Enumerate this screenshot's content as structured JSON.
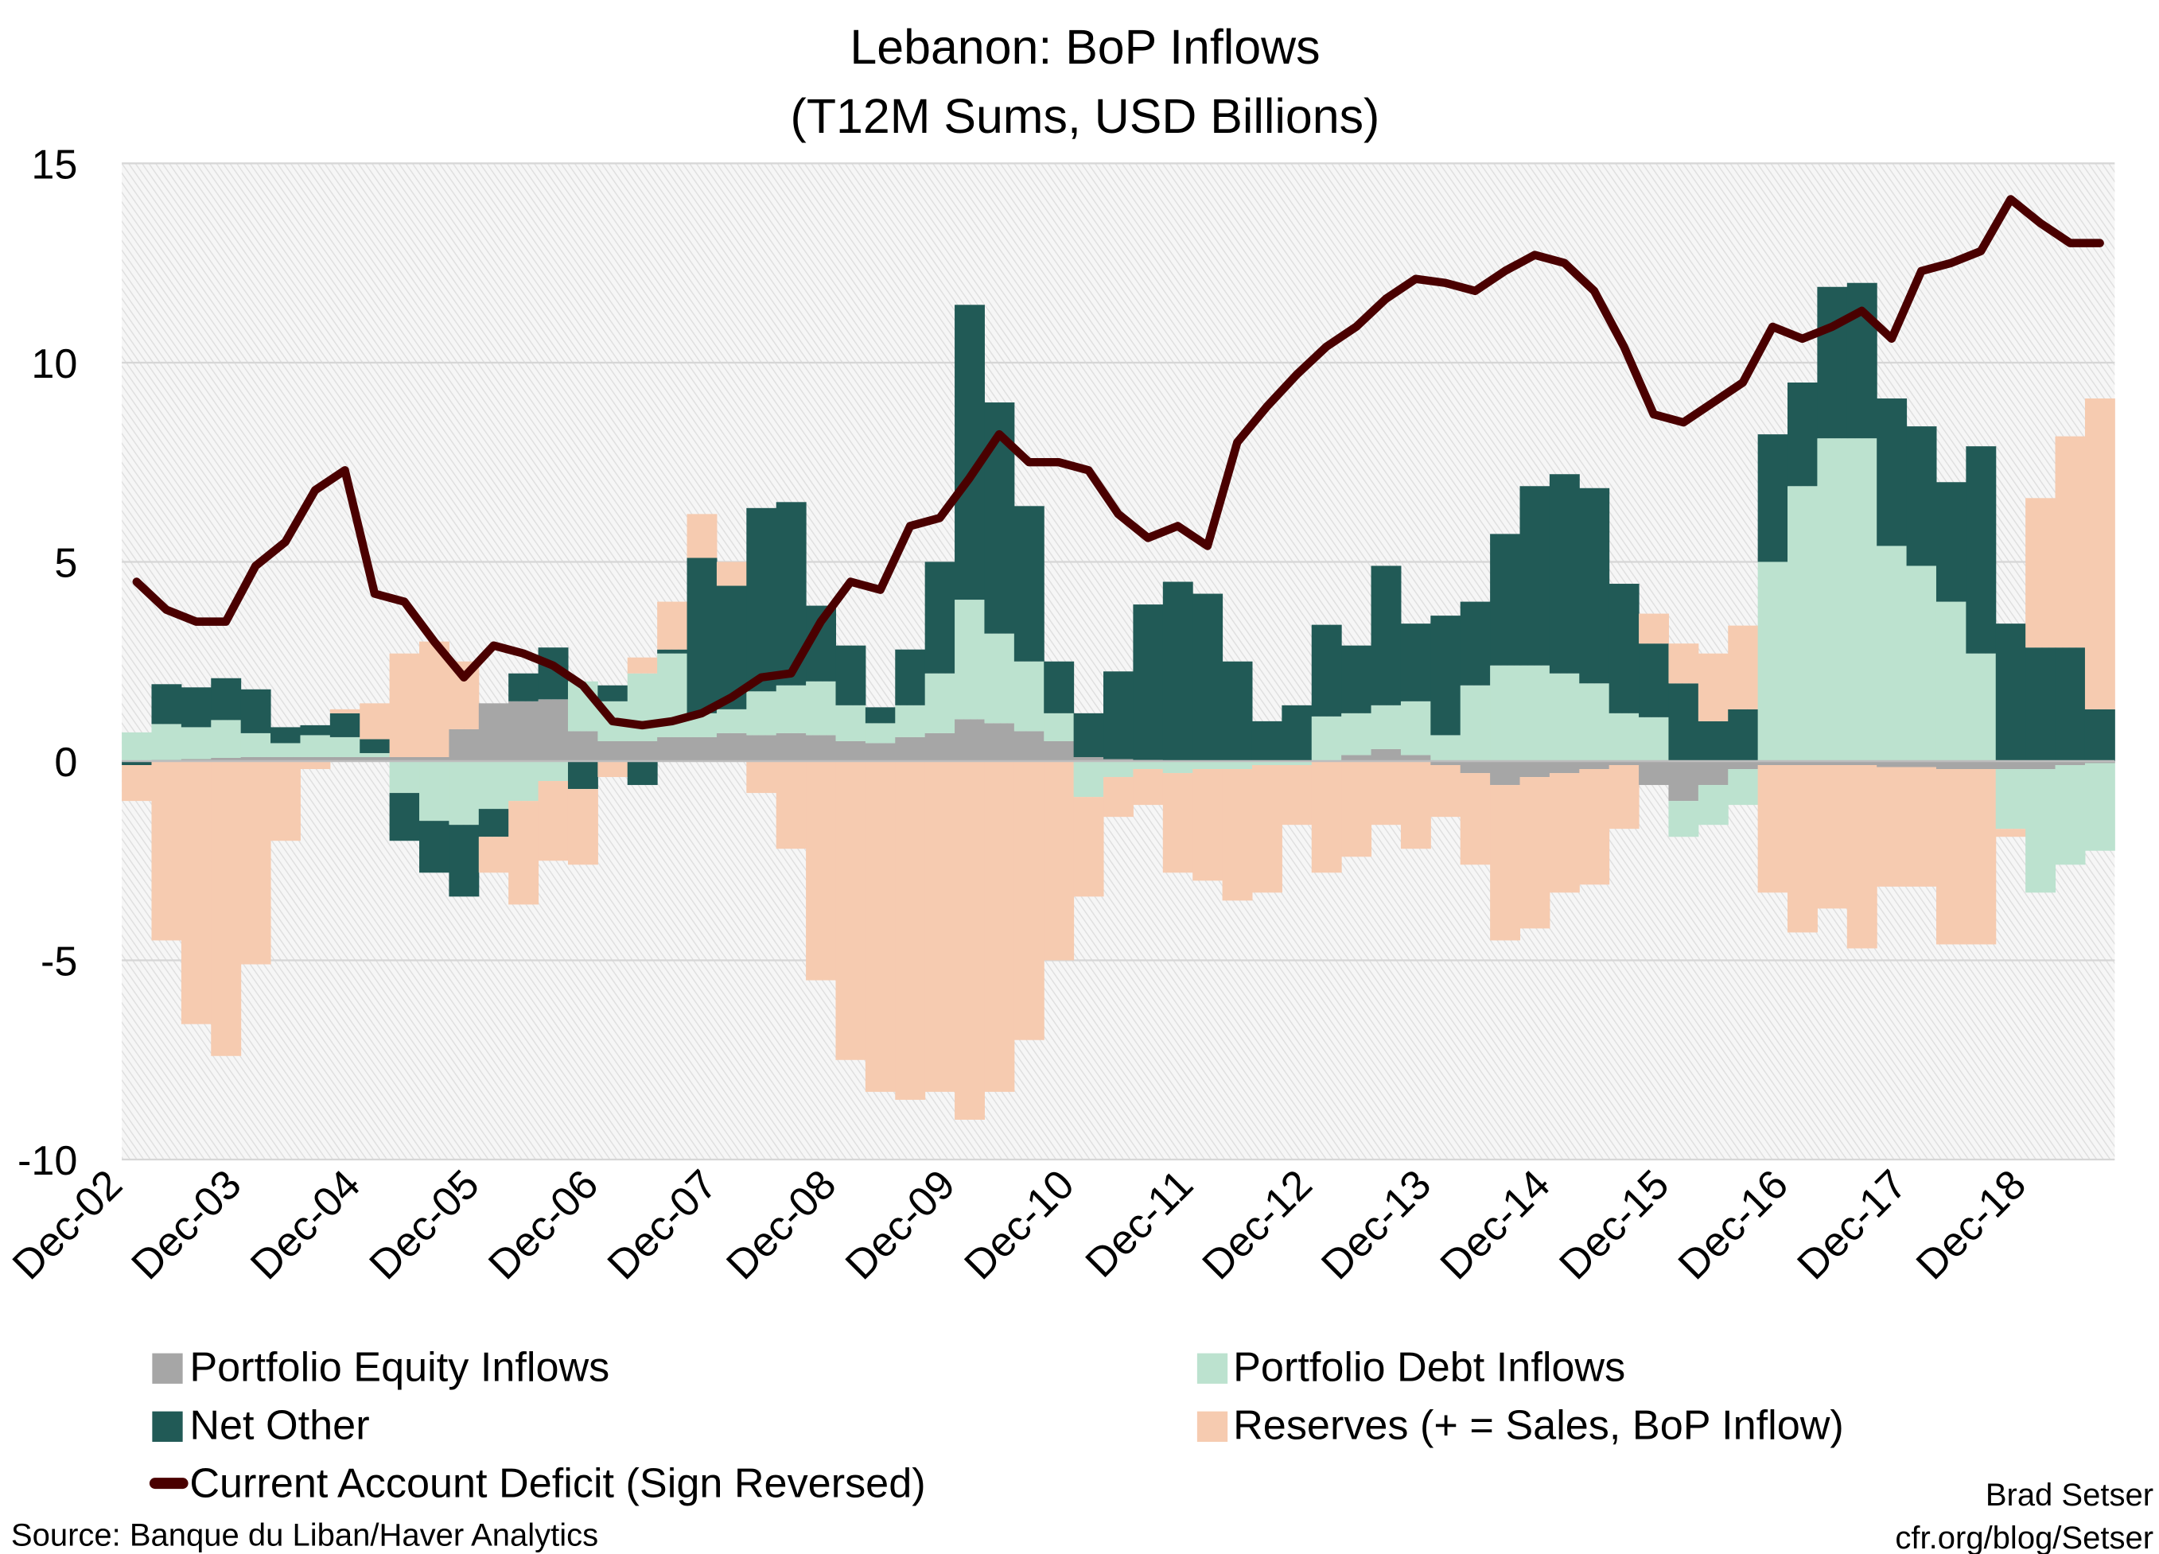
{
  "chart_data": {
    "type": "bar",
    "stacked": true,
    "title": "Lebanon: BoP Inflows",
    "subtitle": "(T12M Sums, USD Billions)",
    "ylim": [
      -10,
      15
    ],
    "yticks": [
      15,
      10,
      5,
      0,
      -5,
      -10
    ],
    "xtick_labels": [
      "Dec-02",
      "Dec-03",
      "Dec-04",
      "Dec-05",
      "Dec-06",
      "Dec-07",
      "Dec-08",
      "Dec-09",
      "Dec-10",
      "Dec-11",
      "Dec-12",
      "Dec-13",
      "Dec-14",
      "Dec-15",
      "Dec-16",
      "Dec-17",
      "Dec-18"
    ],
    "grid": true,
    "legend_position": "bottom",
    "x": [
      "Dec-02",
      "Mar-03",
      "Jun-03",
      "Sep-03",
      "Dec-03",
      "Mar-04",
      "Jun-04",
      "Sep-04",
      "Dec-04",
      "Mar-05",
      "Jun-05",
      "Sep-05",
      "Dec-05",
      "Mar-06",
      "Jun-06",
      "Sep-06",
      "Dec-06",
      "Mar-07",
      "Jun-07",
      "Sep-07",
      "Dec-07",
      "Mar-08",
      "Jun-08",
      "Sep-08",
      "Dec-08",
      "Mar-09",
      "Jun-09",
      "Sep-09",
      "Dec-09",
      "Mar-10",
      "Jun-10",
      "Sep-10",
      "Dec-10",
      "Mar-11",
      "Jun-11",
      "Sep-11",
      "Dec-11",
      "Mar-12",
      "Jun-12",
      "Sep-12",
      "Dec-12",
      "Mar-13",
      "Jun-13",
      "Sep-13",
      "Dec-13",
      "Mar-14",
      "Jun-14",
      "Sep-14",
      "Dec-14",
      "Mar-15",
      "Jun-15",
      "Sep-15",
      "Dec-15",
      "Mar-16",
      "Jun-16",
      "Sep-16",
      "Dec-16",
      "Mar-17",
      "Jun-17",
      "Sep-17",
      "Dec-17",
      "Mar-18",
      "Jun-18",
      "Sep-18",
      "Dec-18",
      "Mar-19",
      "Jun-19"
    ],
    "series": [
      {
        "name": "Portfolio Equity Inflows",
        "kind": "bar",
        "color": "#a6a6a6",
        "values": [
          0.02,
          0.03,
          0.05,
          0.08,
          0.1,
          0.1,
          0.1,
          0.1,
          0.1,
          0.1,
          0.1,
          0.8,
          1.45,
          1.5,
          1.55,
          0.75,
          0.5,
          0.5,
          0.6,
          0.6,
          0.7,
          0.65,
          0.7,
          0.65,
          0.5,
          0.45,
          0.6,
          0.7,
          1.05,
          0.95,
          0.75,
          0.5,
          0.1,
          0.05,
          0.03,
          0.0,
          0.0,
          0.0,
          0.0,
          0.0,
          0.02,
          0.15,
          0.3,
          0.15,
          -0.1,
          -0.3,
          -0.6,
          -0.4,
          -0.3,
          -0.2,
          -0.1,
          -0.6,
          -1.0,
          -0.6,
          -0.2,
          -0.1,
          -0.1,
          -0.1,
          -0.1,
          -0.15,
          -0.15,
          -0.2,
          -0.2,
          -0.2,
          -0.2,
          -0.1,
          -0.05
        ]
      },
      {
        "name": "Portfolio Debt Inflows",
        "kind": "bar",
        "color": "#bce2cf",
        "values": [
          0.7,
          0.9,
          0.8,
          0.95,
          0.6,
          0.35,
          0.55,
          0.5,
          0.1,
          -0.8,
          -1.5,
          -1.6,
          -1.2,
          -1.0,
          -0.5,
          1.25,
          1.0,
          1.7,
          2.1,
          0.6,
          0.6,
          1.1,
          1.2,
          1.35,
          0.9,
          0.5,
          0.8,
          1.5,
          3.0,
          2.25,
          1.75,
          0.7,
          -0.9,
          -0.4,
          -0.2,
          -0.3,
          -0.2,
          -0.2,
          -0.1,
          -0.1,
          1.1,
          1.05,
          1.1,
          1.35,
          0.65,
          1.9,
          2.4,
          2.4,
          2.2,
          1.95,
          1.2,
          1.1,
          -0.9,
          -1.0,
          -0.9,
          5.0,
          6.9,
          8.1,
          8.1,
          5.4,
          4.9,
          4.0,
          2.7,
          -1.5,
          -3.1,
          -2.5,
          -2.2
        ]
      },
      {
        "name": "Net Other",
        "kind": "bar",
        "color": "#215a56",
        "values": [
          -0.1,
          1.0,
          1.0,
          1.05,
          1.1,
          0.4,
          0.25,
          0.6,
          0.35,
          -1.2,
          -1.3,
          -1.8,
          -0.7,
          0.7,
          1.3,
          -0.7,
          0.4,
          -0.6,
          0.1,
          3.9,
          3.1,
          4.6,
          4.6,
          1.9,
          1.5,
          0.4,
          1.4,
          2.8,
          7.4,
          5.8,
          3.9,
          1.3,
          1.1,
          2.2,
          3.9,
          4.5,
          4.2,
          2.5,
          1.0,
          1.4,
          2.3,
          1.7,
          3.5,
          1.95,
          3.0,
          2.1,
          3.3,
          4.5,
          5.0,
          4.9,
          3.25,
          1.85,
          1.95,
          1.0,
          1.3,
          3.2,
          2.6,
          3.8,
          3.9,
          3.7,
          3.5,
          3.0,
          5.2,
          3.45,
          2.85,
          2.85,
          1.3
        ]
      },
      {
        "name": "Reserves (+ = Sales, BoP Inflow)",
        "kind": "bar",
        "color": "#f6cbb0",
        "values": [
          -0.9,
          -4.5,
          -6.6,
          -7.4,
          -5.1,
          -2.0,
          -0.2,
          0.1,
          0.9,
          2.6,
          2.9,
          1.7,
          -0.9,
          -2.6,
          -2.0,
          -1.9,
          -0.4,
          0.4,
          1.2,
          1.1,
          0.6,
          -0.8,
          -2.2,
          -5.5,
          -7.5,
          -8.3,
          -8.5,
          -8.3,
          -9.0,
          -8.3,
          -7.0,
          -5.0,
          -2.5,
          -1.0,
          -0.9,
          -2.5,
          -2.8,
          -3.3,
          -3.2,
          -1.5,
          -2.8,
          -2.4,
          -1.6,
          -2.2,
          -1.3,
          -2.3,
          -3.9,
          -3.8,
          -3.0,
          -2.9,
          -1.6,
          0.75,
          1.0,
          1.7,
          2.1,
          -3.2,
          -4.2,
          -3.6,
          -4.6,
          -3.0,
          -3.0,
          -4.4,
          -4.4,
          -0.2,
          3.75,
          5.3,
          7.8
        ]
      },
      {
        "name": "Current Account Deficit (Sign Reversed)",
        "kind": "line",
        "color": "#4a0000",
        "values": [
          4.5,
          3.8,
          3.5,
          3.5,
          4.9,
          5.5,
          6.8,
          7.3,
          4.2,
          4.0,
          3.0,
          2.1,
          2.9,
          2.7,
          2.4,
          1.9,
          1.0,
          0.9,
          1.0,
          1.2,
          1.6,
          2.1,
          2.2,
          3.5,
          4.5,
          4.3,
          5.9,
          6.1,
          7.1,
          8.2,
          7.5,
          7.5,
          7.3,
          6.2,
          5.6,
          5.9,
          5.4,
          8.0,
          8.9,
          9.7,
          10.4,
          10.9,
          11.6,
          12.1,
          12.0,
          11.8,
          12.3,
          12.7,
          12.5,
          11.8,
          10.4,
          8.7,
          8.5,
          9.0,
          9.5,
          10.9,
          10.6,
          10.9,
          11.3,
          10.6,
          12.3,
          12.5,
          12.8,
          14.1,
          13.5,
          13.0,
          13.0
        ]
      }
    ]
  },
  "source": "Source: Banque du Liban/Haver Analytics",
  "credit": {
    "author": "Brad Setser",
    "url": "cfr.org/blog/Setser"
  }
}
